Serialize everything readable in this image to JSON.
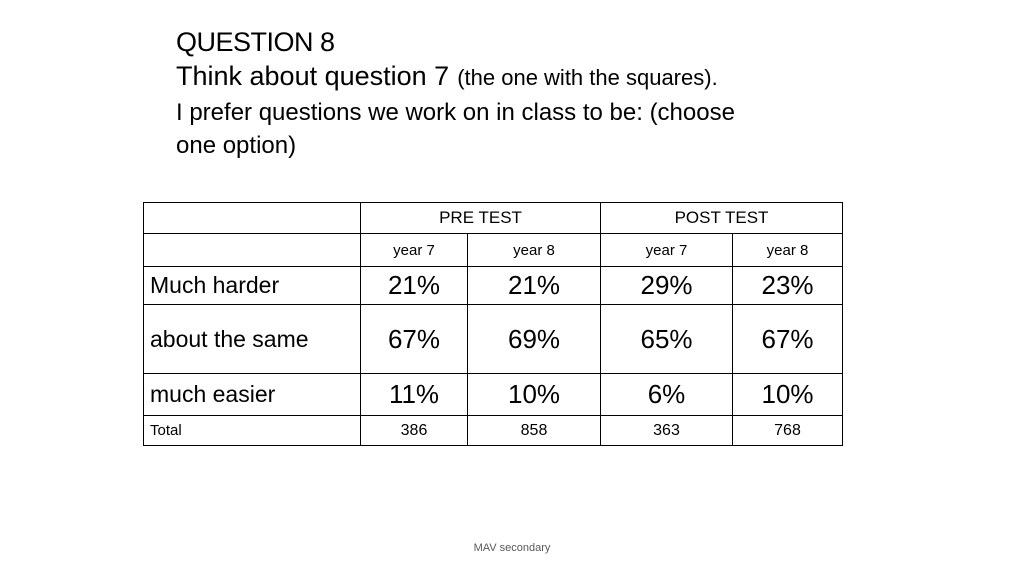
{
  "slide": {
    "heading": "QUESTION 8",
    "line2_main": "Think about question  7",
    "line2_small": "(the one with the squares).",
    "line3": "I prefer questions we work on in class to be: (choose",
    "line4": "one option)"
  },
  "table": {
    "groups": [
      "PRE TEST",
      "POST TEST"
    ],
    "years": [
      "year 7",
      "year 8",
      "year 7",
      "year 8"
    ],
    "rows": [
      {
        "label": "Much harder",
        "values": [
          "21%",
          "21%",
          "29%",
          "23%"
        ]
      },
      {
        "label": "about the same",
        "values": [
          "67%",
          "69%",
          "65%",
          "67%"
        ]
      },
      {
        "label": "much easier",
        "values": [
          "11%",
          "10%",
          "6%",
          "10%"
        ]
      },
      {
        "label": "Total",
        "values": [
          "386",
          "858",
          "363",
          "768"
        ]
      }
    ]
  },
  "footer": {
    "text": "MAV secondary"
  }
}
